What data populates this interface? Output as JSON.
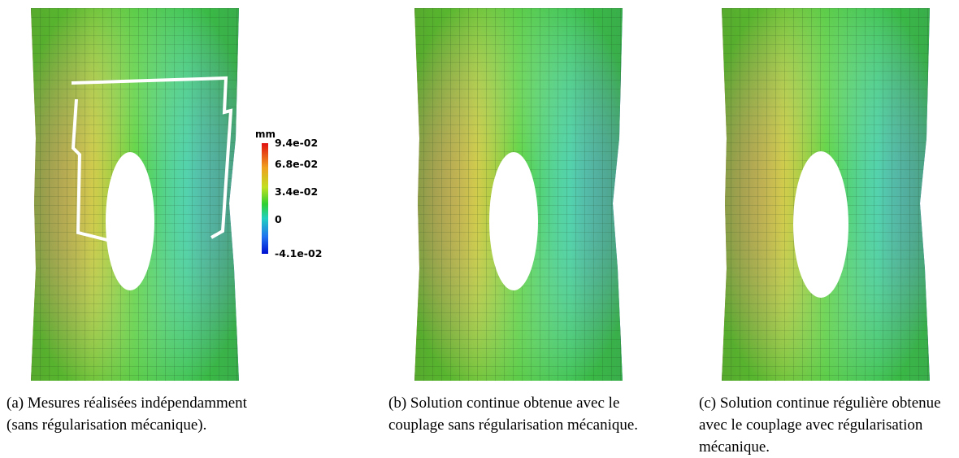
{
  "figure": {
    "legend": {
      "unit": "mm",
      "ticks": [
        "9.4e-02",
        "6.8e-02",
        "3.4e-02",
        "0",
        "-4.1e-02"
      ]
    },
    "captions": {
      "a": "(a) Mesures réalisées indépendamment (sans régularisation mécanique).",
      "b": "(b) Solution continue obtenue avec le couplage sans régularisation mécanique.",
      "c": "(c) Solution continue régulière obtenue avec le couplage avec régularisation mécanique."
    }
  },
  "colors": {
    "max": "#e01010",
    "high": "#f0a020",
    "mid": "#30d030",
    "zero": "#20d0c0",
    "min": "#0010d0"
  }
}
